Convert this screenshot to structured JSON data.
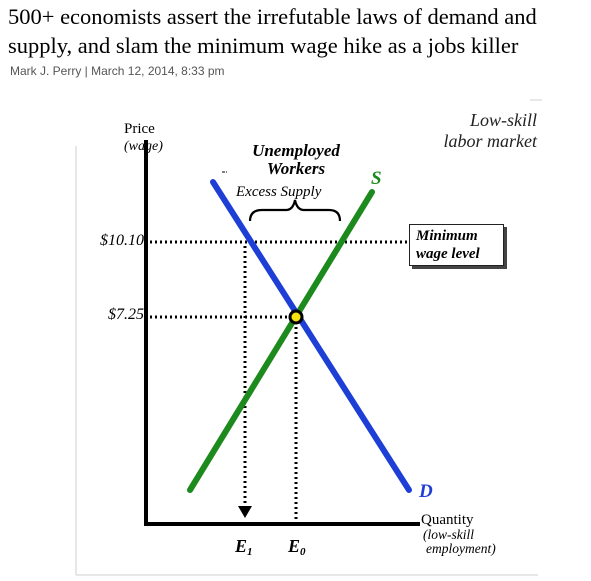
{
  "article": {
    "headline": "500+ economists assert the irrefutable laws of demand and supply, and slam the minimum wage hike as a jobs killer",
    "byline": "Mark J. Perry | March 12, 2014, 8:33 pm"
  },
  "chart_data": {
    "type": "line",
    "title_lines": [
      "Low-skill",
      "labor market"
    ],
    "ylabel": "Price",
    "ylabel_sub": "(wage)",
    "xlabel": "Quantity",
    "xlabel_sub_lines": [
      "(low-skill",
      "employment)"
    ],
    "y_ticks": [
      {
        "label": "$10.10",
        "value": 10.1
      },
      {
        "label": "$7.25",
        "value": 7.25
      }
    ],
    "x_ticks": [
      {
        "main": "E",
        "sub": "1"
      },
      {
        "main": "E",
        "sub": "0"
      }
    ],
    "series": [
      {
        "name": "S",
        "color": "#1d8a1d"
      },
      {
        "name": "D",
        "color": "#1e3fd6"
      }
    ],
    "annotations": {
      "unemployed_lines": [
        "Unemployed",
        "Workers"
      ],
      "excess": "Excess Supply",
      "min_wage_lines": [
        "Minimum",
        "wage level"
      ]
    },
    "grid": false
  }
}
